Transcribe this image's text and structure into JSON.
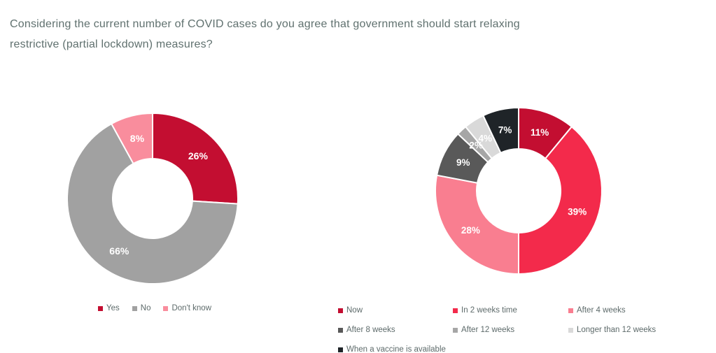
{
  "title": {
    "text": "Considering the current number of COVID cases do you agree that government should start relaxing restrictive (partial lockdown) measures?",
    "line1": "Considering the current number of COVID cases do you agree that government should start relaxing",
    "line2": "restrictive (partial lockdown) measures?"
  },
  "colors": {
    "background": "#FFFFFF",
    "title_text": "#60716F",
    "legend_text": "#5D6A6A",
    "data_label_text": "#FFFFFF",
    "slice_border": "#FFFFFF"
  },
  "chart_data": [
    {
      "type": "pie",
      "subtype": "donut",
      "name": "agree-to-relax-donut",
      "legend_position": "bottom",
      "data_labels": "percent",
      "start_angle_deg": 0,
      "direction": "clockwise",
      "slices": [
        {
          "label": "Yes",
          "value": 26,
          "display": "26%",
          "color": "#C30E31"
        },
        {
          "label": "No",
          "value": 66,
          "display": "66%",
          "color": "#A1A1A1"
        },
        {
          "label": "Don't know",
          "value": 8,
          "display": "8%",
          "color": "#F98D9D"
        }
      ]
    },
    {
      "type": "pie",
      "subtype": "donut",
      "name": "when-to-relax-donut",
      "legend_position": "bottom",
      "data_labels": "percent",
      "start_angle_deg": 0,
      "direction": "clockwise",
      "slices": [
        {
          "label": "Now",
          "value": 11,
          "display": "11%",
          "color": "#C30E31"
        },
        {
          "label": "In 2 weeks time",
          "value": 39,
          "display": "39%",
          "color": "#F32A4B"
        },
        {
          "label": "After 4 weeks",
          "value": 28,
          "display": "28%",
          "color": "#F97E90"
        },
        {
          "label": "After 8 weeks",
          "value": 9,
          "display": "9%",
          "color": "#595959"
        },
        {
          "label": "After 12 weeks",
          "value": 2,
          "display": "2%",
          "color": "#A6A6A6"
        },
        {
          "label": "Longer than 12 weeks",
          "value": 4,
          "display": "4%",
          "color": "#D9D9D9"
        },
        {
          "label": "When a vaccine is available",
          "value": 7,
          "display": "7%",
          "color": "#1F2428"
        }
      ]
    }
  ]
}
